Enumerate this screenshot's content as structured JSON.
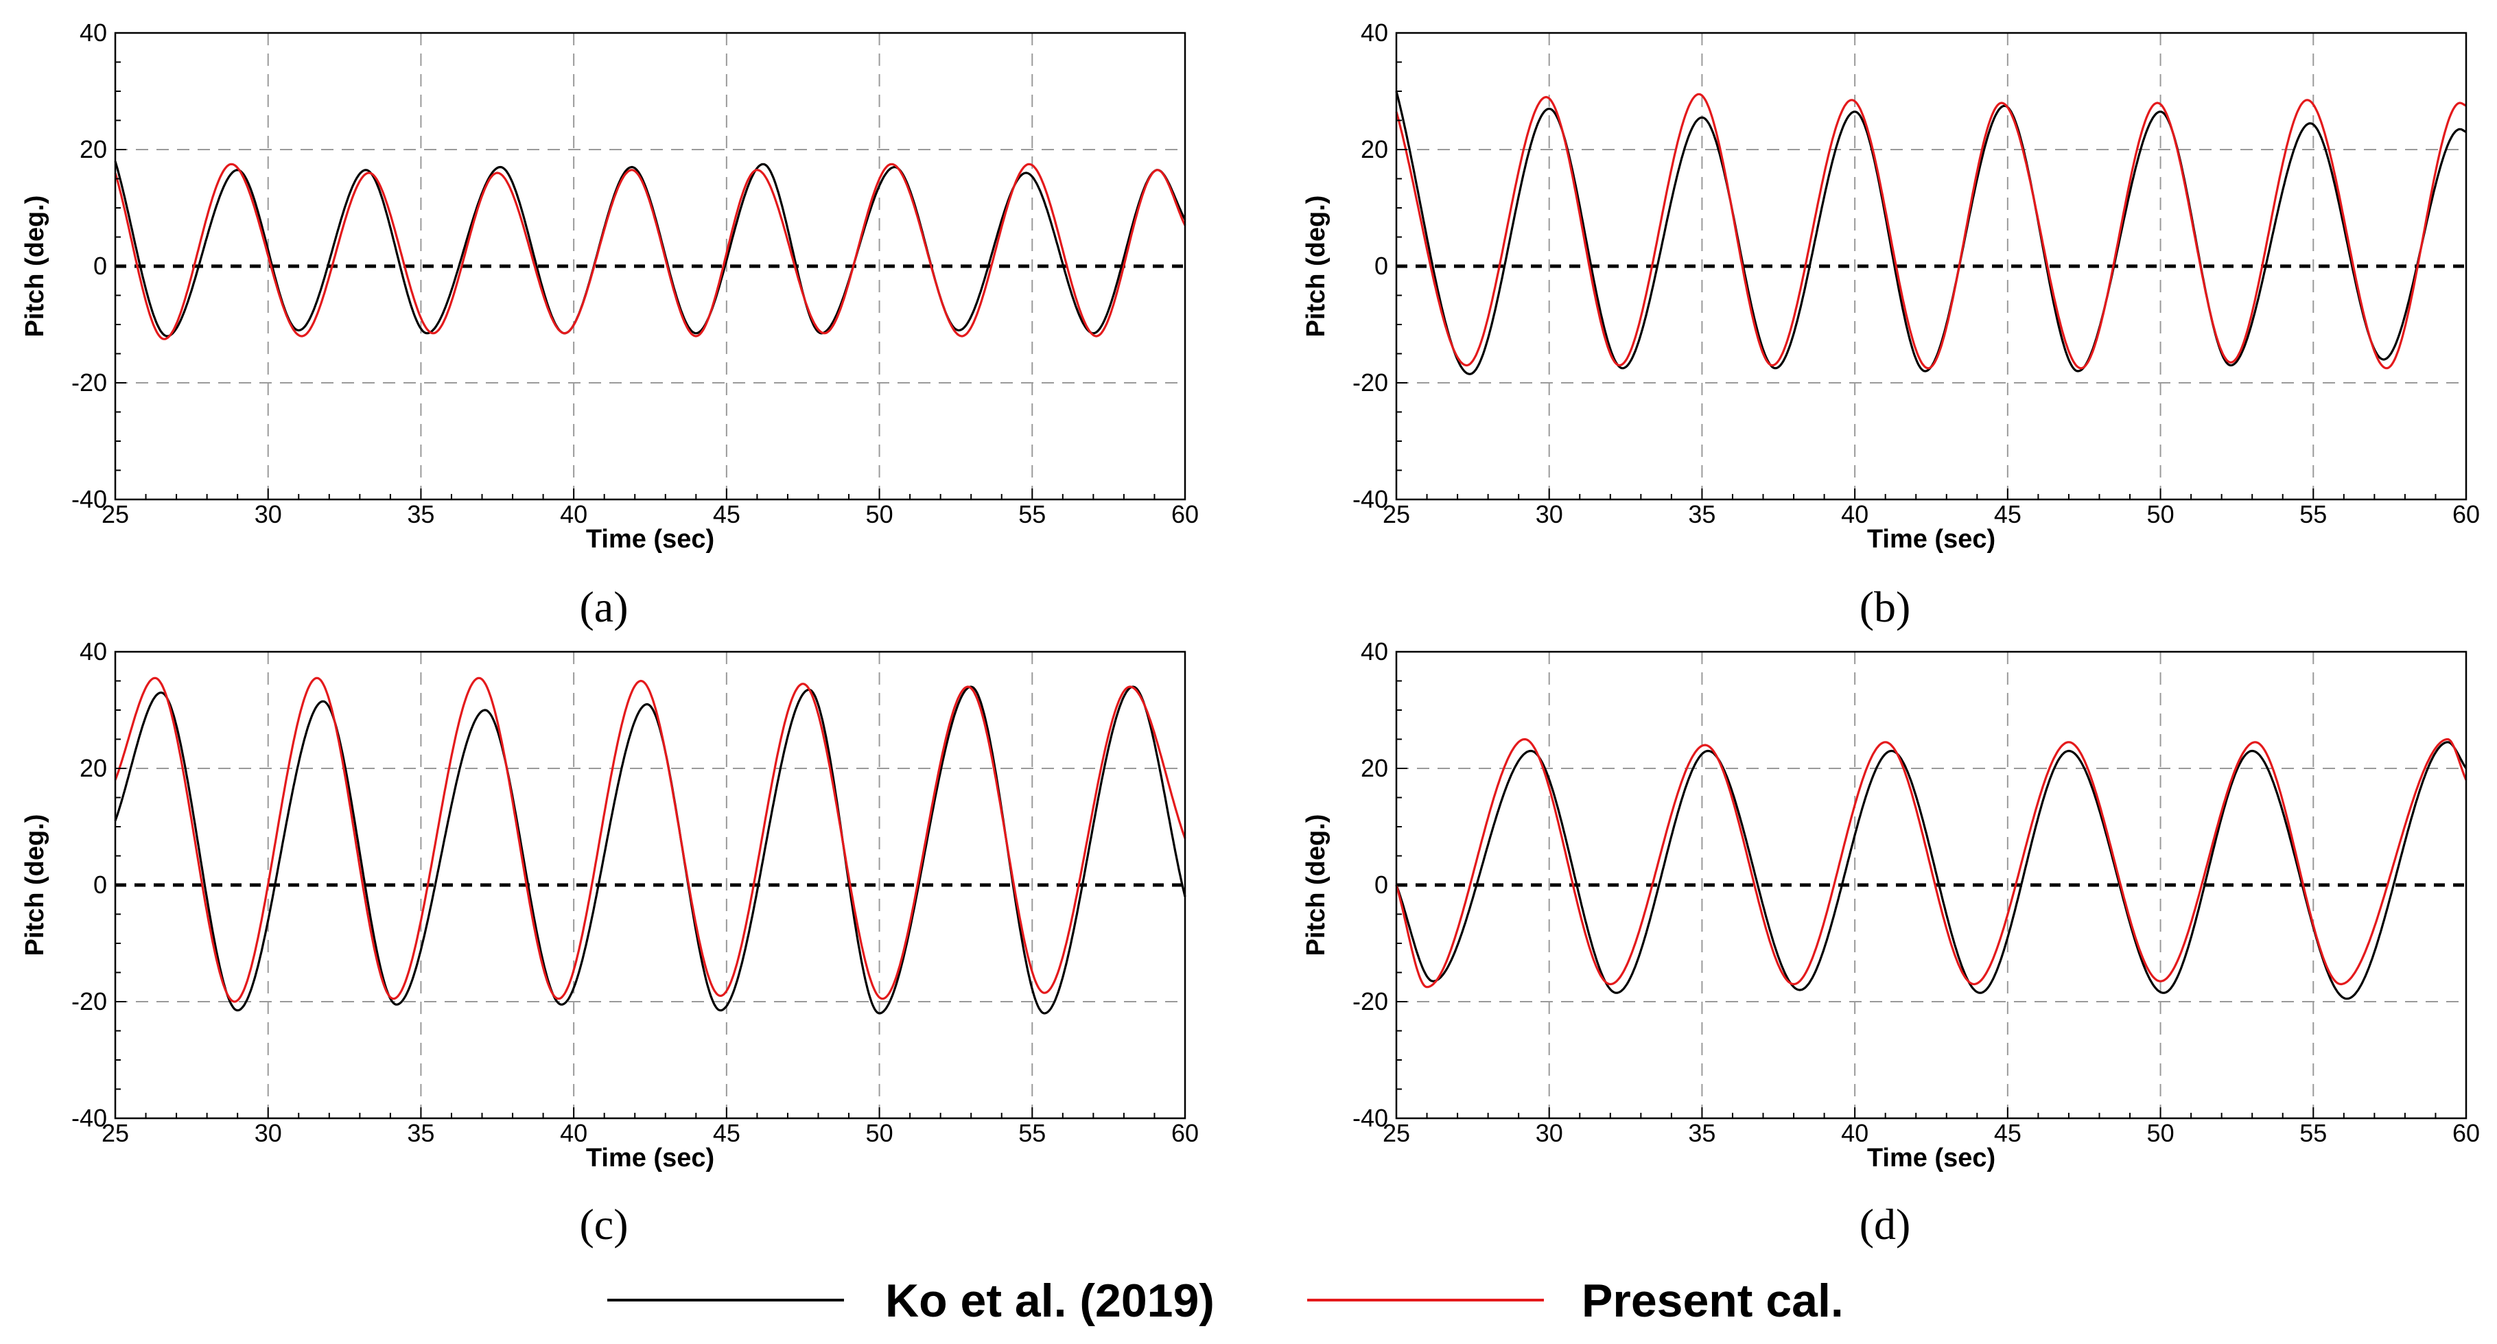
{
  "chart_data": [
    {
      "panel": "(a)",
      "type": "line",
      "xlabel": "Time (sec)",
      "ylabel": "Pitch (deg.)",
      "xlim": [
        25,
        60
      ],
      "ylim": [
        -40,
        40
      ],
      "xticks": [
        25,
        30,
        35,
        40,
        45,
        50,
        55,
        60
      ],
      "yticks": [
        -40,
        -20,
        0,
        20,
        40
      ],
      "grid": true,
      "reference_line": {
        "y": 0,
        "style": "dashed",
        "color": "#000000"
      },
      "series": [
        {
          "name": "Ko et al. (2019)",
          "color": "#000000",
          "x": [
            25.0,
            26.7,
            29.0,
            31.0,
            33.2,
            35.2,
            37.6,
            39.7,
            41.9,
            44.0,
            46.2,
            48.1,
            50.5,
            52.6,
            54.8,
            57.0,
            59.1,
            60.0
          ],
          "y": [
            18.0,
            -12.0,
            16.5,
            -11.0,
            16.5,
            -11.5,
            17.0,
            -11.5,
            17.0,
            -11.5,
            17.5,
            -11.5,
            17.0,
            -11.0,
            16.0,
            -11.5,
            16.5,
            8.0
          ]
        },
        {
          "name": "Present cal.",
          "color": "#e41a1c",
          "x": [
            25.0,
            26.6,
            28.8,
            31.1,
            33.3,
            35.4,
            37.5,
            39.7,
            41.9,
            44.0,
            46.0,
            48.2,
            50.4,
            52.7,
            54.9,
            57.1,
            59.1,
            60.0
          ],
          "y": [
            16.0,
            -12.5,
            17.5,
            -12.0,
            16.0,
            -11.5,
            16.0,
            -11.5,
            16.5,
            -12.0,
            16.5,
            -11.5,
            17.5,
            -12.0,
            17.5,
            -12.0,
            16.5,
            7.0
          ]
        }
      ]
    },
    {
      "panel": "(b)",
      "type": "line",
      "xlabel": "Time (sec)",
      "ylabel": "Pitch (deg.)",
      "xlim": [
        25,
        60
      ],
      "ylim": [
        -40,
        40
      ],
      "xticks": [
        25,
        30,
        35,
        40,
        45,
        50,
        55,
        60
      ],
      "yticks": [
        -40,
        -20,
        0,
        20,
        40
      ],
      "grid": true,
      "reference_line": {
        "y": 0,
        "style": "dashed",
        "color": "#000000"
      },
      "series": [
        {
          "name": "Ko et al. (2019)",
          "color": "#000000",
          "x": [
            25.0,
            27.4,
            30.0,
            32.4,
            35.0,
            37.4,
            40.0,
            42.3,
            44.9,
            47.3,
            50.0,
            52.3,
            54.9,
            57.3,
            59.8,
            60.0
          ],
          "y": [
            30.0,
            -18.5,
            27.0,
            -17.5,
            25.5,
            -17.5,
            26.5,
            -18.0,
            27.5,
            -18.0,
            26.5,
            -17.0,
            24.5,
            -16.0,
            23.5,
            23.0
          ]
        },
        {
          "name": "Present cal.",
          "color": "#e41a1c",
          "x": [
            25.0,
            27.3,
            29.9,
            32.3,
            34.9,
            37.3,
            39.9,
            42.4,
            44.8,
            47.4,
            49.9,
            52.3,
            54.8,
            57.4,
            59.8,
            60.0
          ],
          "y": [
            26.5,
            -17.0,
            29.0,
            -17.0,
            29.5,
            -17.0,
            28.5,
            -17.5,
            28.0,
            -17.5,
            28.0,
            -16.5,
            28.5,
            -17.5,
            28.0,
            27.5
          ]
        }
      ]
    },
    {
      "panel": "(c)",
      "type": "line",
      "xlabel": "Time (sec)",
      "ylabel": "Pitch (deg.)",
      "xlim": [
        25,
        60
      ],
      "ylim": [
        -40,
        40
      ],
      "xticks": [
        25,
        30,
        35,
        40,
        45,
        50,
        55,
        60
      ],
      "yticks": [
        -40,
        -20,
        0,
        20,
        40
      ],
      "grid": true,
      "reference_line": {
        "y": 0,
        "style": "dashed",
        "color": "#000000"
      },
      "series": [
        {
          "name": "Ko et al. (2019)",
          "color": "#000000",
          "x": [
            25.0,
            26.5,
            29.0,
            31.8,
            34.2,
            37.1,
            39.6,
            42.4,
            44.8,
            47.7,
            50.0,
            53.0,
            55.4,
            58.3,
            60.0
          ],
          "y": [
            11.0,
            33.0,
            -21.5,
            31.5,
            -20.5,
            30.0,
            -20.5,
            31.0,
            -21.5,
            33.5,
            -22.0,
            34.0,
            -22.0,
            34.0,
            -2.0
          ]
        },
        {
          "name": "Present cal.",
          "color": "#e41a1c",
          "x": [
            25.0,
            26.3,
            28.9,
            31.6,
            34.1,
            36.9,
            39.5,
            42.2,
            44.8,
            47.5,
            50.1,
            52.9,
            55.4,
            58.2,
            60.0
          ],
          "y": [
            18.0,
            35.5,
            -20.0,
            35.5,
            -19.5,
            35.5,
            -19.5,
            35.0,
            -19.0,
            34.5,
            -19.5,
            34.0,
            -18.5,
            34.0,
            8.0
          ]
        }
      ]
    },
    {
      "panel": "(d)",
      "type": "line",
      "xlabel": "Time (sec)",
      "ylabel": "Pitch (deg.)",
      "xlim": [
        25,
        60
      ],
      "ylim": [
        -40,
        40
      ],
      "xticks": [
        25,
        30,
        35,
        40,
        45,
        50,
        55,
        60
      ],
      "yticks": [
        -40,
        -20,
        0,
        20,
        40
      ],
      "grid": true,
      "reference_line": {
        "y": 0,
        "style": "dashed",
        "color": "#000000"
      },
      "series": [
        {
          "name": "Ko et al. (2019)",
          "color": "#000000",
          "x": [
            25.0,
            26.2,
            29.4,
            32.2,
            35.2,
            38.2,
            41.2,
            44.1,
            47.0,
            50.1,
            53.0,
            56.1,
            59.4,
            60.0
          ],
          "y": [
            0.0,
            -16.5,
            23.0,
            -18.5,
            23.0,
            -18.0,
            23.0,
            -18.5,
            23.0,
            -18.5,
            23.0,
            -19.5,
            24.5,
            20.0
          ]
        },
        {
          "name": "Present cal.",
          "color": "#e41a1c",
          "x": [
            25.0,
            26.0,
            29.2,
            32.0,
            35.1,
            38.0,
            41.0,
            43.9,
            47.0,
            50.0,
            53.1,
            55.9,
            59.4,
            60.0
          ],
          "y": [
            0.0,
            -17.5,
            25.0,
            -17.0,
            24.0,
            -17.0,
            24.5,
            -17.0,
            24.5,
            -16.5,
            24.5,
            -17.0,
            25.0,
            18.0
          ]
        }
      ]
    }
  ],
  "legend": {
    "entries": [
      {
        "label": "Ko et al. (2019)",
        "color": "#000000"
      },
      {
        "label": "Present cal.",
        "color": "#e41a1c"
      }
    ]
  }
}
